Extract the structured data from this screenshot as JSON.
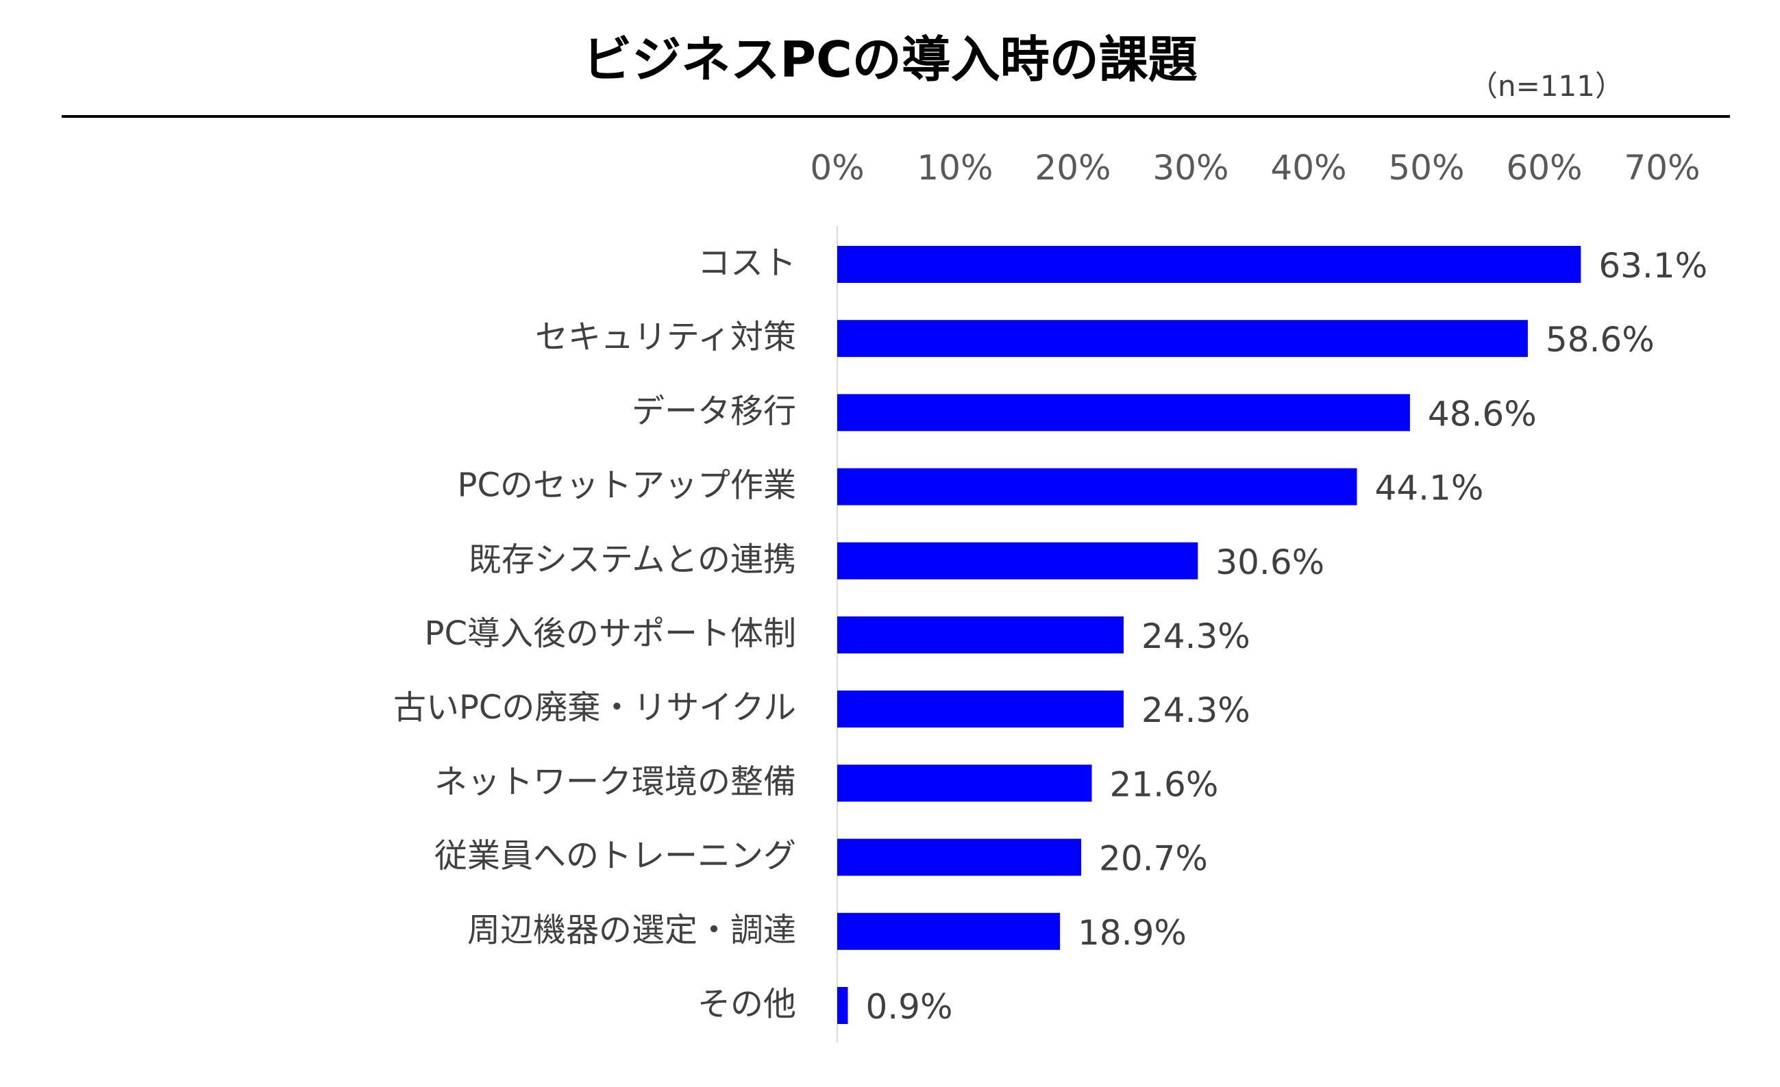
{
  "chart_data": {
    "type": "bar",
    "orientation": "horizontal",
    "title": "ビジネスPCの導入時の課題",
    "note": "（n=111）",
    "xlim": [
      0,
      70
    ],
    "x_ticks": [
      "0%",
      "10%",
      "20%",
      "30%",
      "40%",
      "50%",
      "60%",
      "70%"
    ],
    "x_tick_values": [
      0,
      10,
      20,
      30,
      40,
      50,
      60,
      70
    ],
    "x_axis_position": "top",
    "grid": false,
    "legend": "none",
    "bar_color": "#0000FF",
    "categories": [
      "コスト",
      "セキュリティ対策",
      "データ移行",
      "PCのセットアップ作業",
      "既存システムとの連携",
      "PC導入後のサポート体制",
      "古いPCの廃棄・リサイクル",
      "ネットワーク環境の整備",
      "従業員へのトレーニング",
      "周辺機器の選定・調達",
      "その他"
    ],
    "values": [
      63.1,
      58.6,
      48.6,
      44.1,
      30.6,
      24.3,
      24.3,
      21.6,
      20.7,
      18.9,
      0.9
    ],
    "value_labels": [
      "63.1%",
      "58.6%",
      "48.6%",
      "44.1%",
      "30.6%",
      "24.3%",
      "24.3%",
      "21.6%",
      "20.7%",
      "18.9%",
      "0.9%"
    ]
  }
}
